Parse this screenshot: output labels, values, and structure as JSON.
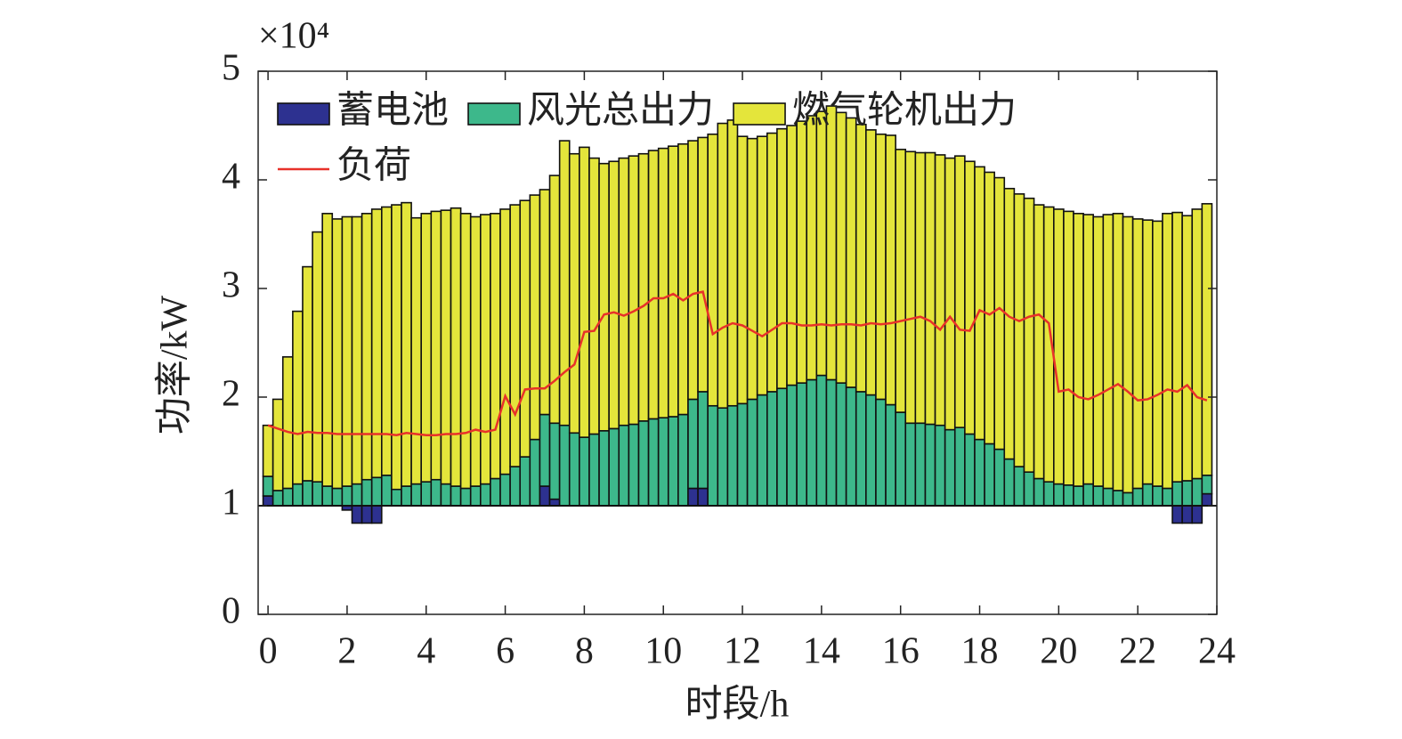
{
  "chart_data": {
    "type": "bar",
    "scale_note": "×10⁴",
    "xlabel": "时段/h",
    "ylabel": "功率/kW",
    "xlim": [
      -0.25,
      24
    ],
    "xticks": [
      0,
      2,
      4,
      6,
      8,
      10,
      12,
      14,
      16,
      18,
      20,
      22,
      24
    ],
    "ylim": [
      0,
      5
    ],
    "yticks": [
      0,
      1,
      2,
      3,
      4,
      5
    ],
    "bar_base": 1,
    "bar_width": 0.25,
    "legend": "upper left",
    "x": [
      0,
      0.25,
      0.5,
      0.75,
      1,
      1.25,
      1.5,
      1.75,
      2,
      2.25,
      2.5,
      2.75,
      3,
      3.25,
      3.5,
      3.75,
      4,
      4.25,
      4.5,
      4.75,
      5,
      5.25,
      5.5,
      5.75,
      6,
      6.25,
      6.5,
      6.75,
      7,
      7.25,
      7.5,
      7.75,
      8,
      8.25,
      8.5,
      8.75,
      9,
      9.25,
      9.5,
      9.75,
      10,
      10.25,
      10.5,
      10.75,
      11,
      11.25,
      11.5,
      11.75,
      12,
      12.25,
      12.5,
      12.75,
      13,
      13.25,
      13.5,
      13.75,
      14,
      14.25,
      14.5,
      14.75,
      15,
      15.25,
      15.5,
      15.75,
      16,
      16.25,
      16.5,
      16.75,
      17,
      17.25,
      17.5,
      17.75,
      18,
      18.25,
      18.5,
      18.75,
      19,
      19.25,
      19.5,
      19.75,
      20,
      20.25,
      20.5,
      20.75,
      21,
      21.25,
      21.5,
      21.75,
      22,
      22.25,
      22.5,
      22.75,
      23,
      23.25,
      23.5,
      23.75
    ],
    "series": [
      {
        "name": "蓄电池",
        "type": "bar",
        "color": "#2d3190",
        "values": [
          0.09,
          0,
          0,
          0,
          0,
          0,
          0,
          0,
          -0.04,
          -0.16,
          -0.16,
          -0.16,
          0,
          0,
          0,
          0,
          0,
          0,
          0,
          0,
          0,
          0,
          0,
          0,
          0,
          0,
          0,
          0,
          0.18,
          0.06,
          0,
          0,
          0,
          0,
          0,
          0,
          0,
          0,
          0,
          0,
          0,
          0,
          0,
          0.16,
          0.16,
          0,
          0,
          0,
          0,
          0,
          0,
          0,
          0,
          0,
          0,
          0,
          0,
          0,
          0,
          0,
          0,
          0,
          0,
          0,
          0,
          0,
          0,
          0,
          0,
          0,
          0,
          0,
          0,
          0,
          0,
          0,
          0,
          0,
          0,
          0,
          0,
          0,
          0,
          0,
          0,
          0,
          0,
          0,
          0,
          0,
          0,
          0,
          -0.16,
          -0.16,
          -0.16,
          0.11
        ]
      },
      {
        "name": "风光总出力",
        "type": "bar",
        "color": "#3db88b",
        "values": [
          0.18,
          0.14,
          0.16,
          0.2,
          0.23,
          0.22,
          0.18,
          0.16,
          0.18,
          0.2,
          0.24,
          0.26,
          0.28,
          0.15,
          0.18,
          0.2,
          0.22,
          0.24,
          0.2,
          0.18,
          0.16,
          0.18,
          0.2,
          0.25,
          0.29,
          0.36,
          0.45,
          0.61,
          0.66,
          0.7,
          0.74,
          0.67,
          0.63,
          0.66,
          0.69,
          0.71,
          0.74,
          0.75,
          0.78,
          0.8,
          0.81,
          0.82,
          0.84,
          0.82,
          0.89,
          0.92,
          0.9,
          0.92,
          0.94,
          0.98,
          1.02,
          1.05,
          1.08,
          1.11,
          1.13,
          1.16,
          1.2,
          1.16,
          1.13,
          1.09,
          1.05,
          1.02,
          0.98,
          0.93,
          0.86,
          0.76,
          0.76,
          0.75,
          0.74,
          0.7,
          0.72,
          0.66,
          0.61,
          0.57,
          0.52,
          0.43,
          0.36,
          0.31,
          0.25,
          0.22,
          0.2,
          0.19,
          0.18,
          0.2,
          0.18,
          0.16,
          0.14,
          0.12,
          0.16,
          0.2,
          0.18,
          0.16,
          0.22,
          0.23,
          0.25,
          0.17
        ]
      },
      {
        "name": "燃气轮机出力",
        "type": "bar",
        "color": "#e4e53b",
        "values": [
          0.47,
          0.84,
          1.21,
          1.59,
          1.97,
          2.3,
          2.51,
          2.48,
          2.48,
          2.46,
          2.45,
          2.47,
          2.47,
          2.62,
          2.61,
          2.45,
          2.47,
          2.47,
          2.52,
          2.56,
          2.53,
          2.48,
          2.48,
          2.44,
          2.44,
          2.41,
          2.36,
          2.25,
          2.07,
          2.28,
          2.62,
          2.57,
          2.67,
          2.54,
          2.46,
          2.46,
          2.46,
          2.47,
          2.46,
          2.47,
          2.48,
          2.49,
          2.49,
          2.38,
          2.34,
          2.5,
          2.62,
          2.63,
          2.46,
          2.4,
          2.38,
          2.38,
          2.39,
          2.39,
          2.41,
          2.43,
          2.43,
          2.52,
          2.49,
          2.48,
          2.46,
          2.44,
          2.44,
          2.48,
          2.42,
          2.5,
          2.49,
          2.5,
          2.49,
          2.5,
          2.5,
          2.51,
          2.51,
          2.5,
          2.5,
          2.49,
          2.51,
          2.52,
          2.52,
          2.53,
          2.53,
          2.52,
          2.51,
          2.48,
          2.48,
          2.52,
          2.55,
          2.54,
          2.48,
          2.43,
          2.44,
          2.53,
          2.48,
          2.44,
          2.48,
          2.5
        ]
      },
      {
        "name": "负荷",
        "type": "line",
        "color": "#e8312a",
        "values": [
          1.74,
          1.71,
          1.68,
          1.66,
          1.68,
          1.67,
          1.67,
          1.66,
          1.66,
          1.66,
          1.66,
          1.66,
          1.66,
          1.65,
          1.67,
          1.66,
          1.65,
          1.65,
          1.66,
          1.66,
          1.67,
          1.7,
          1.68,
          1.7,
          2.01,
          1.84,
          2.07,
          2.08,
          2.08,
          2.15,
          2.23,
          2.3,
          2.6,
          2.61,
          2.76,
          2.78,
          2.75,
          2.79,
          2.84,
          2.91,
          2.91,
          2.95,
          2.89,
          2.95,
          2.97,
          2.58,
          2.64,
          2.68,
          2.66,
          2.61,
          2.56,
          2.62,
          2.68,
          2.68,
          2.66,
          2.66,
          2.67,
          2.66,
          2.67,
          2.67,
          2.66,
          2.68,
          2.67,
          2.68,
          2.7,
          2.72,
          2.74,
          2.7,
          2.62,
          2.74,
          2.62,
          2.61,
          2.8,
          2.76,
          2.82,
          2.74,
          2.7,
          2.74,
          2.76,
          2.68,
          2.05,
          2.07,
          2,
          1.98,
          2.02,
          2.07,
          2.12,
          2.05,
          1.97,
          1.98,
          2.02,
          2.07,
          2.05,
          2.11,
          2,
          1.97
        ]
      }
    ]
  }
}
